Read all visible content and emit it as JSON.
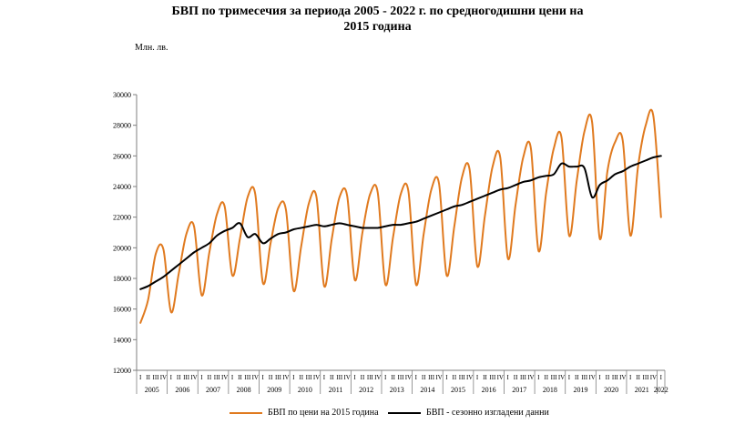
{
  "header": {
    "title_line1": "БВП по тримесечия за периода 2005 - 2022 г. по средногодишни цени на",
    "title_line2": "2015 година",
    "unit": "Млн. лв."
  },
  "colors": {
    "orange": "#e07a1f",
    "black": "#000000",
    "axis": "#7f7f7f"
  },
  "chart_data": {
    "type": "line",
    "title": "БВП по тримесечия за периода 2005 - 2022 г. по средногодишни цени на 2015 година",
    "ylabel": "Млн. лв.",
    "ylim": [
      12000,
      30000
    ],
    "yticks": [
      12000,
      14000,
      16000,
      18000,
      20000,
      22000,
      24000,
      26000,
      28000,
      30000
    ],
    "grid": false,
    "legend": "bottom",
    "quarter_labels": [
      "I",
      "II",
      "III",
      "IV"
    ],
    "years": [
      "2005",
      "2006",
      "2007",
      "2008",
      "2009",
      "2010",
      "2011",
      "2012",
      "2013",
      "2014",
      "2015",
      "2016",
      "2017",
      "2018",
      "2019",
      "2020",
      "2021",
      "2022"
    ],
    "series": [
      {
        "name": "БВП  по цени на 2015 година",
        "color": "#e07a1f",
        "values": [
          15100,
          16600,
          19600,
          19900,
          15800,
          18300,
          20900,
          21400,
          16900,
          19700,
          22200,
          22700,
          18200,
          20600,
          23300,
          23500,
          17700,
          20300,
          22600,
          22500,
          17200,
          20100,
          22900,
          23300,
          17500,
          20600,
          23300,
          23400,
          17900,
          21000,
          23500,
          23600,
          17600,
          20700,
          23500,
          23700,
          17600,
          20900,
          23800,
          24200,
          18200,
          21400,
          24600,
          25100,
          18800,
          22100,
          25300,
          25900,
          19300,
          22800,
          25900,
          26500,
          19800,
          23600,
          26500,
          27200,
          20800,
          24400,
          27600,
          28200,
          20600,
          25000,
          26900,
          27000,
          20800,
          25300,
          28000,
          28600,
          22000
        ]
      },
      {
        "name": "БВП - сезонно изгладени данни",
        "color": "#000000",
        "values": [
          17300,
          17500,
          17800,
          18100,
          18500,
          18900,
          19300,
          19700,
          20000,
          20300,
          20800,
          21100,
          21300,
          21600,
          20700,
          20900,
          20300,
          20600,
          20900,
          21000,
          21200,
          21300,
          21400,
          21500,
          21400,
          21500,
          21600,
          21500,
          21400,
          21300,
          21300,
          21300,
          21400,
          21500,
          21500,
          21600,
          21700,
          21900,
          22100,
          22300,
          22500,
          22700,
          22800,
          23000,
          23200,
          23400,
          23600,
          23800,
          23900,
          24100,
          24300,
          24400,
          24600,
          24700,
          24800,
          25500,
          25300,
          25300,
          25200,
          23300,
          24100,
          24400,
          24800,
          25000,
          25300,
          25500,
          25700,
          25900,
          26000
        ]
      }
    ]
  }
}
